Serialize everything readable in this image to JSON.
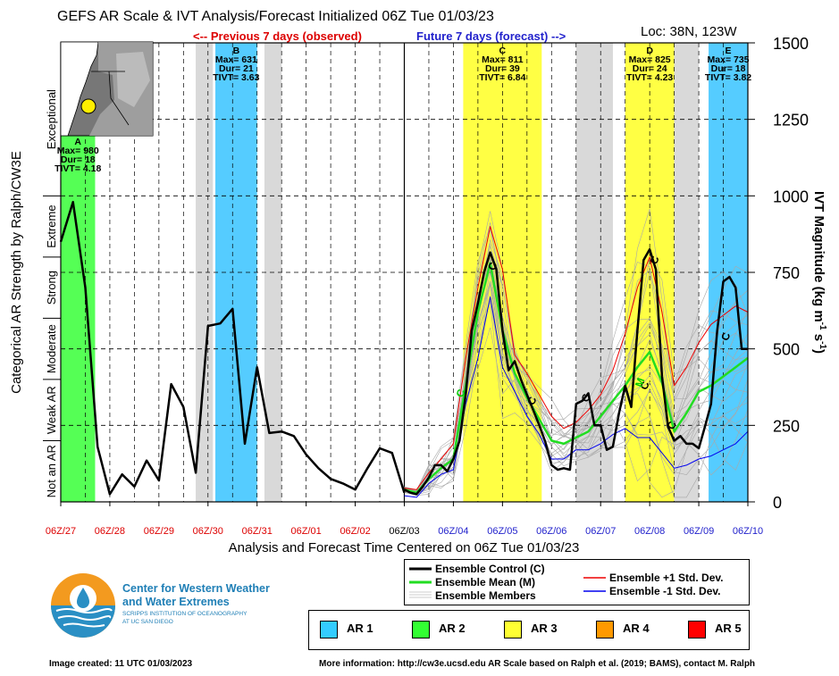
{
  "title": "GEFS AR Scale & IVT Analysis/Forecast Initialized 06Z Tue 01/03/23",
  "location": "Loc: 38N, 123W",
  "previous_label": "<-- Previous 7 days (observed)",
  "future_label": "Future 7 days (forecast) -->",
  "left_axis_title": "Categorical AR Strength by Ralph/CW3E",
  "right_axis_title_main": "IVT Magnitude (kg m",
  "right_axis_title_sup1": "-1",
  "right_axis_title_mid": " s",
  "right_axis_title_sup2": "-1",
  "right_axis_title_end": ")",
  "x_axis_title": "Analysis and Forecast Time Centered on 06Z Tue 01/03/23",
  "footer_left": "Image created: 11 UTC 01/03/2023",
  "footer_right": "More information: http://cw3e.ucsd.edu  AR Scale based on Ralph et al. (2019; BAMS), contact M. Ralph",
  "logo": {
    "line1": "Center for Western Weather",
    "line2": "and Water Extremes",
    "line3": "SCRIPPS INSTITUTION OF OCEANOGRAPHY",
    "line4": "AT UC SAN DIEGO"
  },
  "legend": {
    "control": "Ensemble Control (C)",
    "mean": "Ensemble Mean (M)",
    "members": "Ensemble Members",
    "plus": "Ensemble +1 Std. Dev.",
    "minus": "Ensemble -1 Std. Dev."
  },
  "ar_legend": [
    {
      "label": "AR 1",
      "color": "#33ccff"
    },
    {
      "label": "AR 2",
      "color": "#33ff33"
    },
    {
      "label": "AR 3",
      "color": "#ffff33"
    },
    {
      "label": "AR 4",
      "color": "#ff9900"
    },
    {
      "label": "AR 5",
      "color": "#ff0000"
    }
  ],
  "categories": [
    "Not an AR",
    "Weak AR",
    "Moderate",
    "Strong",
    "Extreme",
    "Exceptional"
  ],
  "chart_data": {
    "type": "line",
    "ylim": [
      0,
      1500
    ],
    "yticks": [
      0,
      250,
      500,
      750,
      1000,
      1250,
      1500
    ],
    "xlim": [
      -7,
      7
    ],
    "xticks": [
      {
        "x": -7,
        "label": "06Z/27",
        "color": "#dd0000"
      },
      {
        "x": -6,
        "label": "06Z/28",
        "color": "#dd0000"
      },
      {
        "x": -5,
        "label": "06Z/29",
        "color": "#dd0000"
      },
      {
        "x": -4,
        "label": "06Z/30",
        "color": "#dd0000"
      },
      {
        "x": -3,
        "label": "06Z/31",
        "color": "#dd0000"
      },
      {
        "x": -2,
        "label": "06Z/01",
        "color": "#dd0000"
      },
      {
        "x": -1,
        "label": "06Z/02",
        "color": "#dd0000"
      },
      {
        "x": 0,
        "label": "06Z/03",
        "color": "#000000"
      },
      {
        "x": 1,
        "label": "06Z/04",
        "color": "#2222cc"
      },
      {
        "x": 2,
        "label": "06Z/05",
        "color": "#2222cc"
      },
      {
        "x": 3,
        "label": "06Z/06",
        "color": "#2222cc"
      },
      {
        "x": 4,
        "label": "06Z/07",
        "color": "#2222cc"
      },
      {
        "x": 5,
        "label": "06Z/08",
        "color": "#2222cc"
      },
      {
        "x": 6,
        "label": "06Z/09",
        "color": "#2222cc"
      },
      {
        "x": 7,
        "label": "06Z/10",
        "color": "#2222cc"
      }
    ],
    "ar_events": [
      {
        "id": "A",
        "max": "Max= 980",
        "dur": "Dur= 18",
        "tivt": "TIVT= 4.18",
        "start": -7,
        "end": -6.3,
        "color": "#55ff55"
      },
      {
        "id": "B",
        "max": "Max= 631",
        "dur": "Dur= 21",
        "tivt": "TIVT= 3.63",
        "start": -3.85,
        "end": -3.0,
        "color": "#55ccff"
      },
      {
        "id": "C",
        "max": "Max= 811",
        "dur": "Dur= 39",
        "tivt": "TIVT= 6.84",
        "start": 1.2,
        "end": 2.8,
        "color": "#ffff44"
      },
      {
        "id": "D",
        "max": "Max= 825",
        "dur": "Dur= 24",
        "tivt": "TIVT= 4.23",
        "start": 4.5,
        "end": 5.5,
        "color": "#ffff44"
      },
      {
        "id": "E",
        "max": "Max= 735",
        "dur": "Dur= 18",
        "tivt": "TIVT= 3.82",
        "start": 6.2,
        "end": 7.0,
        "color": "#55ccff"
      }
    ],
    "gray_bands": [
      [
        -4.25,
        -3.9
      ],
      [
        -2.85,
        -2.5
      ],
      [
        3.5,
        4.25
      ],
      [
        5.5,
        6.0
      ]
    ],
    "observed": {
      "name": "Analysis",
      "x": [
        -7,
        -6.75,
        -6.5,
        -6.25,
        -6,
        -5.75,
        -5.5,
        -5.25,
        -5,
        -4.75,
        -4.5,
        -4.25,
        -4,
        -3.75,
        -3.5,
        -3.25,
        -3,
        -2.75,
        -2.5,
        -2.25,
        -2,
        -1.75,
        -1.5,
        -1.25,
        -1,
        -0.75,
        -0.5,
        -0.25,
        0
      ],
      "y": [
        850,
        980,
        700,
        180,
        25,
        90,
        50,
        135,
        70,
        385,
        310,
        95,
        575,
        583,
        631,
        190,
        440,
        225,
        230,
        215,
        155,
        110,
        75,
        60,
        40,
        110,
        175,
        160,
        30
      ]
    },
    "control": {
      "name": "Ensemble Control (C)",
      "x": [
        0,
        0.125,
        0.25,
        0.375,
        0.5,
        0.625,
        0.75,
        0.875,
        1,
        1.125,
        1.25,
        1.375,
        1.5,
        1.625,
        1.75,
        1.875,
        2,
        2.125,
        2.25,
        2.375,
        2.5,
        2.625,
        2.75,
        2.875,
        3,
        3.125,
        3.25,
        3.375,
        3.5,
        3.625,
        3.75,
        3.875,
        4,
        4.125,
        4.25,
        4.375,
        4.5,
        4.625,
        4.75,
        4.875,
        5,
        5.125,
        5.25,
        5.375,
        5.5,
        5.625,
        5.75,
        5.875,
        6,
        6.125,
        6.25,
        6.375,
        6.5,
        6.625,
        6.75,
        6.875,
        7
      ],
      "y": [
        40,
        30,
        25,
        50,
        80,
        120,
        120,
        100,
        140,
        200,
        350,
        560,
        650,
        750,
        815,
        760,
        560,
        430,
        460,
        400,
        350,
        300,
        250,
        195,
        120,
        105,
        110,
        105,
        320,
        330,
        355,
        250,
        250,
        170,
        180,
        290,
        380,
        310,
        560,
        790,
        825,
        760,
        410,
        245,
        200,
        215,
        190,
        190,
        175,
        245,
        320,
        560,
        720,
        735,
        700,
        500,
        500
      ]
    },
    "mean": {
      "name": "Ensemble Mean (M)",
      "x": [
        0,
        0.25,
        0.5,
        0.75,
        1,
        1.25,
        1.5,
        1.75,
        2,
        2.25,
        2.5,
        2.75,
        3,
        3.25,
        3.5,
        3.75,
        4,
        4.25,
        4.5,
        4.75,
        5,
        5.25,
        5.5,
        5.75,
        6,
        6.25,
        6.5,
        6.75,
        7
      ],
      "y": [
        40,
        30,
        75,
        110,
        140,
        380,
        620,
        780,
        560,
        420,
        340,
        270,
        200,
        190,
        210,
        230,
        280,
        330,
        380,
        440,
        490,
        390,
        230,
        290,
        360,
        380,
        410,
        440,
        470
      ]
    },
    "plus_sd": {
      "name": "Ensemble +1 Std. Dev.",
      "x": [
        0,
        0.25,
        0.5,
        0.75,
        1,
        1.25,
        1.5,
        1.75,
        2,
        2.25,
        2.5,
        2.75,
        3,
        3.25,
        3.5,
        3.75,
        4,
        4.25,
        4.5,
        4.75,
        5,
        5.25,
        5.5,
        5.75,
        6,
        6.25,
        6.5,
        6.75,
        7
      ],
      "y": [
        45,
        40,
        95,
        140,
        190,
        470,
        700,
        900,
        760,
        480,
        420,
        350,
        280,
        240,
        260,
        300,
        350,
        430,
        550,
        700,
        800,
        620,
        380,
        440,
        520,
        580,
        610,
        640,
        620
      ]
    },
    "minus_sd": {
      "name": "Ensemble -1 Std. Dev.",
      "x": [
        0,
        0.25,
        0.5,
        0.75,
        1,
        1.25,
        1.5,
        1.75,
        2,
        2.25,
        2.5,
        2.75,
        3,
        3.25,
        3.5,
        3.75,
        4,
        4.25,
        4.5,
        4.75,
        5,
        5.25,
        5.5,
        5.75,
        6,
        6.25,
        6.5,
        6.75,
        7
      ],
      "y": [
        20,
        15,
        60,
        90,
        105,
        320,
        470,
        670,
        440,
        360,
        280,
        220,
        140,
        140,
        170,
        170,
        190,
        220,
        240,
        210,
        210,
        160,
        110,
        120,
        140,
        150,
        170,
        190,
        230
      ]
    },
    "control_labels": [
      {
        "x": 1.8,
        "y": 770,
        "text": "C",
        "color": "#000000"
      },
      {
        "x": 2.6,
        "y": 330,
        "text": "C",
        "color": "#000000"
      },
      {
        "x": 3.7,
        "y": 340,
        "text": "C",
        "color": "#000000"
      },
      {
        "x": 4.9,
        "y": 380,
        "text": "C",
        "color": "#000000"
      },
      {
        "x": 5.1,
        "y": 790,
        "text": "C",
        "color": "#000000"
      },
      {
        "x": 5.45,
        "y": 250,
        "text": "C",
        "color": "#000000"
      },
      {
        "x": 6.55,
        "y": 540,
        "text": "C",
        "color": "#000000"
      },
      {
        "x": 1.15,
        "y": 355,
        "text": "C",
        "color": "#00cc00"
      },
      {
        "x": 4.8,
        "y": 390,
        "text": "M",
        "color": "#00cc00"
      }
    ]
  }
}
